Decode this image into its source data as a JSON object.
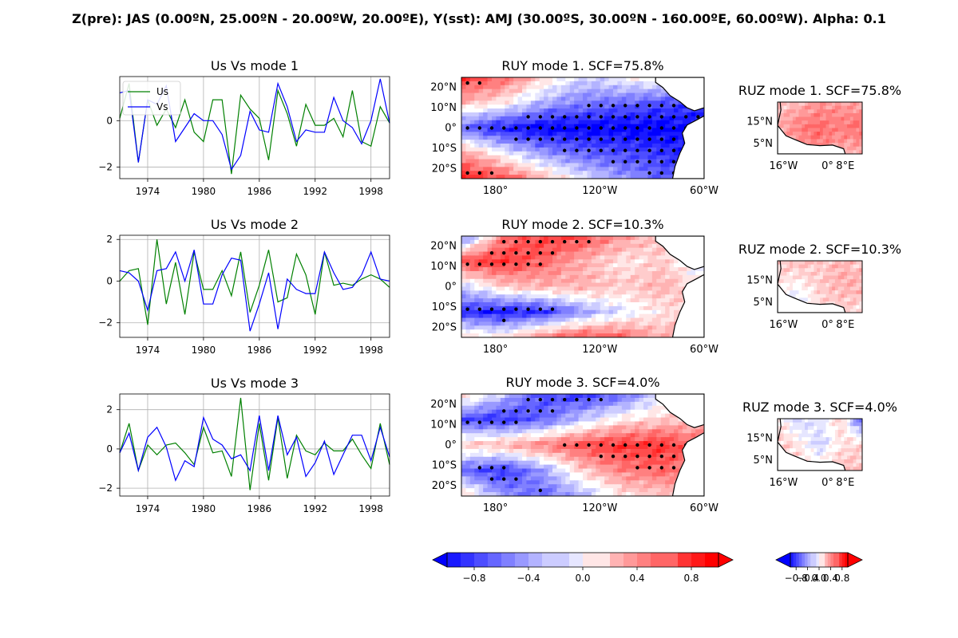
{
  "suptitle": "Z(pre): JAS (0.00ºN, 25.00ºN - 20.00ºW, 20.00ºE), Y(sst): AMJ (30.00ºS, 30.00ºN - 160.00ºE, 60.00ºW). Alpha: 0.1",
  "legend": {
    "us": "Us",
    "vs": "Vs"
  },
  "colors": {
    "us": "#008000",
    "vs": "#0000ff",
    "neg": "#0000ff",
    "pos": "#ff0000",
    "coast": "#000000"
  },
  "chart_data": [
    {
      "type": "line",
      "title": "Us Vs mode 1",
      "x": [
        1971,
        1972,
        1973,
        1974,
        1975,
        1976,
        1977,
        1978,
        1979,
        1980,
        1981,
        1982,
        1983,
        1984,
        1985,
        1986,
        1987,
        1988,
        1989,
        1990,
        1991,
        1992,
        1993,
        1994,
        1995,
        1996,
        1997,
        1998,
        1999,
        2000
      ],
      "xticks": [
        "1974",
        "1980",
        "1986",
        "1992",
        "1998"
      ],
      "yticks": [
        "−2",
        "0"
      ],
      "ylim": [
        -2.5,
        1.9
      ],
      "grid": true,
      "legend_position": "upper-left",
      "series": [
        {
          "name": "Us",
          "values": [
            0.1,
            1.6,
            -1.8,
            0.9,
            -0.2,
            0.5,
            -0.3,
            0.9,
            -0.5,
            -0.9,
            0.9,
            0.9,
            -2.3,
            1.1,
            0.5,
            0.1,
            -1.7,
            1.3,
            0.3,
            -1.1,
            0.7,
            -0.2,
            -0.2,
            0.1,
            -0.7,
            1.3,
            -0.9,
            -1.1,
            0.6,
            -0.1
          ]
        },
        {
          "name": "Vs",
          "values": [
            1.2,
            1.3,
            -1.8,
            0.9,
            0.7,
            1.5,
            -0.9,
            -0.3,
            0.3,
            0.0,
            0.0,
            -0.6,
            -2.1,
            -1.5,
            0.4,
            -0.4,
            -0.5,
            1.6,
            0.6,
            -0.9,
            -0.4,
            -0.5,
            -0.5,
            1.0,
            0.0,
            -0.3,
            -1.0,
            0.0,
            1.8,
            -0.1
          ]
        }
      ]
    },
    {
      "type": "line",
      "title": "Us Vs mode 2",
      "x": [
        1971,
        1972,
        1973,
        1974,
        1975,
        1976,
        1977,
        1978,
        1979,
        1980,
        1981,
        1982,
        1983,
        1984,
        1985,
        1986,
        1987,
        1988,
        1989,
        1990,
        1991,
        1992,
        1993,
        1994,
        1995,
        1996,
        1997,
        1998,
        1999,
        2000
      ],
      "xticks": [
        "1974",
        "1980",
        "1986",
        "1992",
        "1998"
      ],
      "yticks": [
        "−2",
        "0",
        "2"
      ],
      "ylim": [
        -2.7,
        2.2
      ],
      "grid": true,
      "series": [
        {
          "name": "Us",
          "values": [
            0.0,
            0.5,
            0.6,
            -2.1,
            2.0,
            -1.1,
            0.9,
            -1.6,
            1.4,
            -0.4,
            -0.4,
            0.5,
            -0.7,
            1.4,
            -1.5,
            -0.2,
            1.5,
            -1.0,
            -0.8,
            1.3,
            0.3,
            -1.6,
            1.4,
            -0.2,
            -0.1,
            -0.2,
            0.1,
            0.3,
            0.1,
            -0.3
          ]
        },
        {
          "name": "Vs",
          "values": [
            0.5,
            0.4,
            0.0,
            -1.4,
            0.5,
            0.6,
            1.4,
            0.0,
            1.5,
            -1.1,
            -1.1,
            0.3,
            1.1,
            1.0,
            -2.4,
            -1.1,
            0.4,
            -2.3,
            0.1,
            -0.4,
            -0.6,
            -0.6,
            1.4,
            0.4,
            -0.4,
            -0.3,
            0.3,
            1.4,
            0.1,
            0.0
          ]
        }
      ]
    },
    {
      "type": "line",
      "title": "Us Vs mode 3",
      "x": [
        1971,
        1972,
        1973,
        1974,
        1975,
        1976,
        1977,
        1978,
        1979,
        1980,
        1981,
        1982,
        1983,
        1984,
        1985,
        1986,
        1987,
        1988,
        1989,
        1990,
        1991,
        1992,
        1993,
        1994,
        1995,
        1996,
        1997,
        1998,
        1999,
        2000
      ],
      "xticks": [
        "1974",
        "1980",
        "1986",
        "1992",
        "1998"
      ],
      "yticks": [
        "−2",
        "0",
        "2"
      ],
      "ylim": [
        -2.4,
        2.8
      ],
      "grid": true,
      "series": [
        {
          "name": "Us",
          "values": [
            -0.2,
            1.3,
            -1.1,
            0.2,
            -0.3,
            0.2,
            0.3,
            -0.2,
            -0.8,
            1.1,
            -0.2,
            -0.1,
            -1.4,
            2.6,
            -2.1,
            1.3,
            -1.6,
            1.6,
            -1.5,
            0.7,
            -0.1,
            -0.3,
            0.3,
            -0.1,
            -0.1,
            0.5,
            -0.3,
            -1.0,
            1.3,
            -0.8
          ]
        },
        {
          "name": "Vs",
          "values": [
            -0.2,
            0.8,
            -1.1,
            0.6,
            1.1,
            0.1,
            -1.6,
            -0.6,
            -0.9,
            1.6,
            0.5,
            0.2,
            -0.5,
            -0.3,
            -1.1,
            1.7,
            -1.1,
            1.7,
            -0.3,
            0.6,
            -1.4,
            -0.7,
            0.4,
            -1.3,
            -0.3,
            0.7,
            0.7,
            -0.6,
            1.1,
            -0.4
          ]
        }
      ]
    },
    {
      "type": "heatmap",
      "title": "RUY mode 1. SCF=75.8%",
      "xticks": [
        "180°",
        "120°W",
        "60°W"
      ],
      "yticks": [
        "20°N",
        "10°N",
        "0°",
        "10°S",
        "20°S"
      ],
      "xlim": [
        160,
        300
      ],
      "ylim": [
        -30,
        30
      ],
      "note_pattern": "positive north 20-30N and south 15-30S, strong negative equatorial tongue",
      "pattern": [
        [
          0.8,
          0.6,
          0.2,
          -0.2,
          0.0,
          0.1,
          -0.3
        ],
        [
          0.3,
          0.1,
          -0.3,
          -0.5,
          -0.6,
          -0.7,
          -0.8
        ],
        [
          -0.6,
          -0.9,
          -1,
          -1,
          -1,
          -1,
          -0.9
        ],
        [
          0.4,
          0.0,
          -0.4,
          -0.6,
          -0.7,
          -0.8,
          -0.9
        ],
        [
          0.9,
          0.7,
          0.3,
          -0.1,
          -0.4,
          -0.6,
          -0.8
        ]
      ]
    },
    {
      "type": "heatmap",
      "title": "RUY mode 2. SCF=10.3%",
      "xticks": [
        "180°",
        "120°W",
        "60°W"
      ],
      "yticks": [
        "20°N",
        "10°N",
        "0°",
        "10°S",
        "20°S"
      ],
      "xlim": [
        160,
        300
      ],
      "ylim": [
        -30,
        30
      ],
      "pattern": [
        [
          -0.6,
          0.5,
          0.8,
          0.7,
          0.4,
          0.2,
          -0.3
        ],
        [
          0.7,
          0.8,
          0.6,
          0.3,
          0.1,
          0.2,
          -0.2
        ],
        [
          -0.2,
          0.2,
          0.3,
          0.3,
          0.2,
          0.3,
          0.1
        ],
        [
          -0.8,
          -0.9,
          -0.8,
          -0.4,
          -0.1,
          0.1,
          0.3
        ],
        [
          0.2,
          0.1,
          0.5,
          0.7,
          0.6,
          0.3,
          0.4
        ]
      ]
    },
    {
      "type": "heatmap",
      "title": "RUY mode 3. SCF=4.0%",
      "xticks": [
        "180°",
        "120°W",
        "60°W"
      ],
      "yticks": [
        "20°N",
        "10°N",
        "0°",
        "10°S",
        "20°S"
      ],
      "xlim": [
        160,
        300
      ],
      "ylim": [
        -30,
        30
      ],
      "pattern": [
        [
          0.3,
          -0.2,
          -0.7,
          -0.8,
          -0.6,
          -0.1,
          0.3
        ],
        [
          -0.7,
          -0.8,
          -0.6,
          -0.2,
          0.1,
          0.2,
          0.3
        ],
        [
          0.2,
          0.3,
          0.5,
          0.7,
          0.8,
          0.8,
          0.5
        ],
        [
          -0.6,
          -0.8,
          -0.4,
          0.2,
          0.5,
          0.6,
          0.4
        ],
        [
          0.3,
          -0.4,
          -0.6,
          -0.3,
          0.1,
          0.2,
          0.3
        ]
      ]
    },
    {
      "type": "heatmap",
      "title": "RUZ mode 1. SCF=75.8%",
      "xticks": [
        "16°W",
        "0°",
        "8°E"
      ],
      "yticks": [
        "15°N",
        "5°N"
      ],
      "xlim": [
        -20,
        20
      ],
      "ylim": [
        0,
        25
      ],
      "pattern": [
        [
          0.2,
          0.3,
          0.4,
          0.4,
          0.3
        ],
        [
          0.3,
          0.5,
          0.6,
          0.5,
          0.6
        ],
        [
          0.2,
          0.4,
          0.4,
          0.3,
          0.3
        ]
      ]
    },
    {
      "type": "heatmap",
      "title": "RUZ mode 2. SCF=10.3%",
      "xticks": [
        "16°W",
        "0°",
        "8°E"
      ],
      "yticks": [
        "15°N",
        "5°N"
      ],
      "xlim": [
        -20,
        20
      ],
      "ylim": [
        0,
        25
      ],
      "pattern": [
        [
          0.2,
          0.3,
          0.2,
          0.3,
          0.2
        ],
        [
          0.1,
          0.0,
          0.2,
          0.3,
          0.3
        ],
        [
          -0.3,
          -0.2,
          0.1,
          0.2,
          0.1
        ]
      ]
    },
    {
      "type": "heatmap",
      "title": "RUZ mode 3. SCF=4.0%",
      "xticks": [
        "16°W",
        "0°",
        "8°E"
      ],
      "yticks": [
        "15°N",
        "5°N"
      ],
      "xlim": [
        -20,
        20
      ],
      "ylim": [
        0,
        25
      ],
      "pattern": [
        [
          0.1,
          -0.2,
          -0.1,
          0.2,
          -0.7
        ],
        [
          0.2,
          0.1,
          -0.2,
          0.1,
          0.2
        ],
        [
          0.1,
          0.2,
          0.1,
          0.3,
          0.2
        ]
      ]
    }
  ],
  "colorbars": [
    {
      "ticks": [
        "−0.8",
        "−0.4",
        "0.0",
        "0.4",
        "0.8"
      ],
      "values": [
        -0.8,
        -0.4,
        0.0,
        0.4,
        0.8
      ],
      "range": [
        -1.0,
        1.0
      ]
    },
    {
      "ticks": [
        "−0.8",
        "−0.4",
        "0.0",
        "0.4",
        "0.8"
      ],
      "values": [
        -0.8,
        -0.4,
        0.0,
        0.4,
        0.8
      ],
      "range": [
        -1.0,
        1.0
      ]
    }
  ]
}
